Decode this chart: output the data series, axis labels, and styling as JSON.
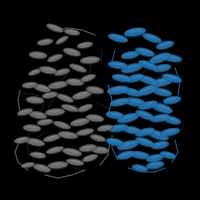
{
  "background_color": "#000000",
  "gray_color": "#787878",
  "gray_dark": "#3a3a3a",
  "gray_light": "#9a9a9a",
  "blue_color": "#2878b4",
  "blue_dark": "#1a5a8a",
  "blue_light": "#4a9ad4",
  "figure_size": [
    2.0,
    2.0
  ],
  "dpi": 100,
  "gray_helices": [
    [
      55,
      28,
      18,
      6,
      -20
    ],
    [
      72,
      32,
      16,
      6,
      -10
    ],
    [
      62,
      40,
      14,
      5,
      30
    ],
    [
      45,
      42,
      16,
      6,
      10
    ],
    [
      38,
      55,
      18,
      7,
      -5
    ],
    [
      55,
      58,
      16,
      6,
      20
    ],
    [
      72,
      52,
      18,
      7,
      -15
    ],
    [
      85,
      45,
      16,
      6,
      10
    ],
    [
      90,
      60,
      20,
      7,
      5
    ],
    [
      78,
      68,
      18,
      6,
      -20
    ],
    [
      62,
      72,
      16,
      6,
      15
    ],
    [
      48,
      70,
      18,
      7,
      -10
    ],
    [
      35,
      72,
      14,
      5,
      20
    ],
    [
      30,
      85,
      16,
      6,
      5
    ],
    [
      42,
      88,
      18,
      7,
      -15
    ],
    [
      58,
      85,
      20,
      7,
      10
    ],
    [
      75,
      82,
      18,
      7,
      -5
    ],
    [
      88,
      78,
      16,
      6,
      20
    ],
    [
      95,
      90,
      18,
      7,
      -10
    ],
    [
      82,
      95,
      20,
      7,
      15
    ],
    [
      65,
      98,
      18,
      6,
      -20
    ],
    [
      50,
      95,
      16,
      6,
      10
    ],
    [
      35,
      100,
      18,
      7,
      -5
    ],
    [
      25,
      112,
      16,
      6,
      15
    ],
    [
      38,
      115,
      18,
      7,
      -10
    ],
    [
      55,
      112,
      20,
      7,
      5
    ],
    [
      70,
      108,
      18,
      6,
      -15
    ],
    [
      85,
      108,
      16,
      6,
      20
    ],
    [
      95,
      118,
      18,
      7,
      -8
    ],
    [
      80,
      122,
      20,
      7,
      12
    ],
    [
      62,
      125,
      18,
      6,
      -18
    ],
    [
      45,
      122,
      16,
      6,
      8
    ],
    [
      32,
      128,
      18,
      7,
      -5
    ],
    [
      22,
      140,
      16,
      6,
      10
    ],
    [
      35,
      142,
      20,
      7,
      -12
    ],
    [
      52,
      138,
      18,
      6,
      15
    ],
    [
      68,
      135,
      20,
      7,
      -8
    ],
    [
      85,
      132,
      18,
      6,
      12
    ],
    [
      98,
      138,
      16,
      6,
      -15
    ],
    [
      88,
      148,
      18,
      7,
      8
    ],
    [
      72,
      152,
      20,
      7,
      -12
    ],
    [
      55,
      150,
      18,
      6,
      15
    ],
    [
      38,
      155,
      16,
      6,
      -8
    ],
    [
      28,
      165,
      14,
      5,
      10
    ],
    [
      42,
      168,
      18,
      7,
      -15
    ],
    [
      58,
      165,
      20,
      7,
      5
    ],
    [
      75,
      162,
      18,
      6,
      -10
    ],
    [
      90,
      158,
      16,
      6,
      18
    ],
    [
      100,
      150,
      18,
      7,
      -5
    ],
    [
      105,
      128,
      16,
      6,
      10
    ]
  ],
  "blue_helices": [
    [
      118,
      38,
      20,
      7,
      -15
    ],
    [
      135,
      32,
      22,
      8,
      10
    ],
    [
      152,
      38,
      20,
      7,
      -20
    ],
    [
      165,
      45,
      18,
      7,
      15
    ],
    [
      172,
      58,
      20,
      7,
      -10
    ],
    [
      160,
      58,
      22,
      8,
      20
    ],
    [
      145,
      52,
      20,
      7,
      -15
    ],
    [
      130,
      55,
      18,
      7,
      10
    ],
    [
      118,
      65,
      20,
      7,
      -8
    ],
    [
      132,
      68,
      22,
      8,
      15
    ],
    [
      148,
      65,
      20,
      7,
      -20
    ],
    [
      162,
      68,
      18,
      7,
      10
    ],
    [
      172,
      78,
      20,
      7,
      -15
    ],
    [
      162,
      82,
      22,
      8,
      12
    ],
    [
      148,
      80,
      20,
      7,
      -18
    ],
    [
      135,
      78,
      18,
      7,
      15
    ],
    [
      122,
      78,
      20,
      7,
      -10
    ],
    [
      118,
      90,
      22,
      8,
      8
    ],
    [
      132,
      92,
      20,
      7,
      -15
    ],
    [
      148,
      90,
      22,
      8,
      20
    ],
    [
      162,
      92,
      20,
      7,
      -12
    ],
    [
      172,
      100,
      18,
      7,
      10
    ],
    [
      162,
      108,
      22,
      8,
      -18
    ],
    [
      148,
      105,
      20,
      7,
      15
    ],
    [
      135,
      102,
      22,
      8,
      -10
    ],
    [
      120,
      102,
      20,
      7,
      12
    ],
    [
      115,
      115,
      18,
      7,
      -8
    ],
    [
      128,
      118,
      22,
      8,
      15
    ],
    [
      145,
      115,
      20,
      7,
      -20
    ],
    [
      160,
      118,
      20,
      7,
      10
    ],
    [
      172,
      120,
      18,
      7,
      -15
    ],
    [
      170,
      132,
      20,
      7,
      12
    ],
    [
      158,
      135,
      22,
      8,
      -18
    ],
    [
      145,
      132,
      20,
      7,
      15
    ],
    [
      132,
      130,
      18,
      7,
      -10
    ],
    [
      118,
      128,
      20,
      7,
      8
    ],
    [
      115,
      142,
      18,
      7,
      -12
    ],
    [
      128,
      145,
      22,
      8,
      15
    ],
    [
      145,
      142,
      20,
      7,
      -18
    ],
    [
      160,
      145,
      18,
      7,
      10
    ],
    [
      168,
      155,
      16,
      6,
      -15
    ],
    [
      155,
      158,
      18,
      7,
      12
    ],
    [
      140,
      155,
      20,
      7,
      -10
    ],
    [
      126,
      155,
      18,
      7,
      15
    ],
    [
      140,
      168,
      16,
      6,
      -12
    ],
    [
      155,
      165,
      18,
      7,
      10
    ]
  ],
  "gray_loops": [
    [
      [
        20,
        90
      ],
      [
        18,
        100
      ],
      [
        20,
        112
      ]
    ],
    [
      [
        20,
        140
      ],
      [
        15,
        152
      ],
      [
        18,
        162
      ],
      [
        28,
        170
      ]
    ],
    [
      [
        45,
        175
      ],
      [
        58,
        178
      ],
      [
        72,
        175
      ],
      [
        85,
        170
      ]
    ],
    [
      [
        100,
        165
      ],
      [
        108,
        155
      ],
      [
        110,
        140
      ]
    ],
    [
      [
        108,
        115
      ],
      [
        112,
        100
      ],
      [
        108,
        85
      ]
    ],
    [
      [
        95,
        35
      ],
      [
        82,
        30
      ],
      [
        68,
        28
      ],
      [
        55,
        30
      ]
    ]
  ],
  "blue_loops": [
    [
      [
        115,
        50
      ],
      [
        112,
        62
      ]
    ],
    [
      [
        175,
        68
      ],
      [
        180,
        82
      ],
      [
        178,
        95
      ]
    ],
    [
      [
        175,
        140
      ],
      [
        178,
        152
      ],
      [
        172,
        162
      ]
    ],
    [
      [
        165,
        168
      ],
      [
        155,
        172
      ],
      [
        142,
        172
      ],
      [
        128,
        168
      ]
    ],
    [
      [
        118,
        160
      ],
      [
        112,
        148
      ],
      [
        112,
        135
      ]
    ]
  ]
}
